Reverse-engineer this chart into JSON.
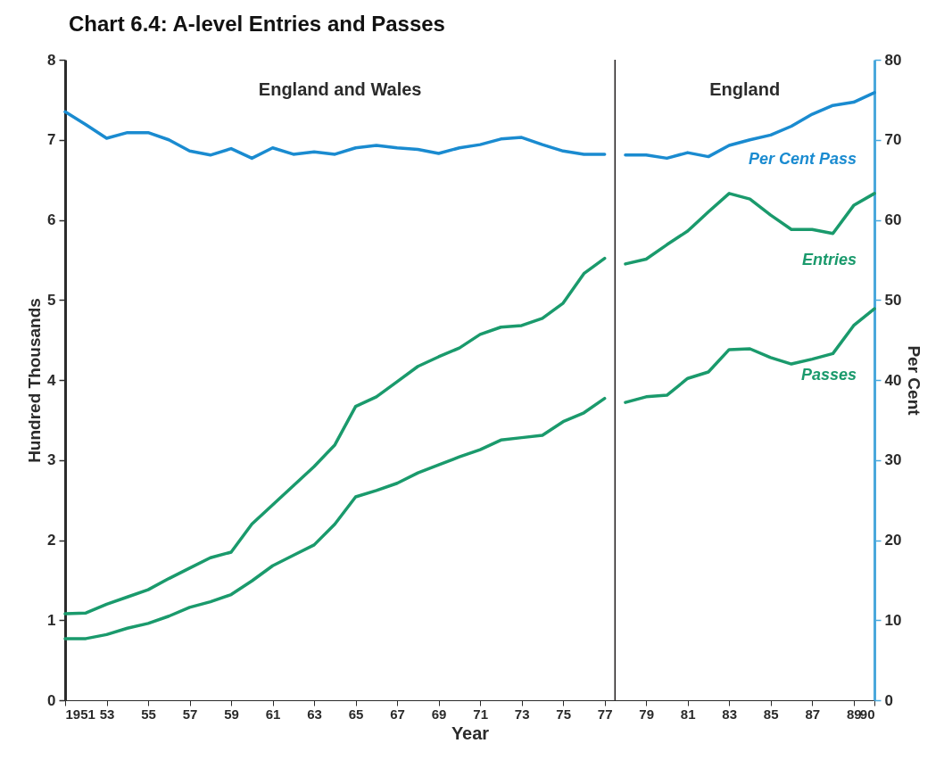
{
  "chart_data": {
    "type": "line",
    "title": "Chart 6.4: A-level Entries and Passes",
    "xlabel": "Year",
    "ylabel": "Hundred Thousands",
    "y2label": "Per Cent",
    "x": [
      1951,
      1952,
      1953,
      1954,
      1955,
      1956,
      1957,
      1958,
      1959,
      1960,
      1961,
      1962,
      1963,
      1964,
      1965,
      1966,
      1967,
      1968,
      1969,
      1970,
      1971,
      1972,
      1973,
      1974,
      1975,
      1976,
      1977,
      1978,
      1979,
      1980,
      1981,
      1982,
      1983,
      1984,
      1985,
      1986,
      1987,
      1988,
      1989,
      1990
    ],
    "series": [
      {
        "name": "Per Cent Pass",
        "color": "#1a8bd0",
        "axis": "y2",
        "values": [
          73.5,
          71.9,
          70.2,
          70.9,
          70.9,
          70.0,
          68.6,
          68.1,
          68.9,
          67.7,
          69.0,
          68.2,
          68.5,
          68.2,
          69.0,
          69.3,
          69.0,
          68.8,
          68.3,
          69.0,
          69.4,
          70.1,
          70.3,
          69.4,
          68.6,
          68.2,
          68.2,
          68.1,
          68.1,
          67.7,
          68.4,
          67.9,
          69.3,
          70.0,
          70.6,
          71.7,
          73.2,
          74.3,
          74.7,
          75.9
        ]
      },
      {
        "name": "Entries",
        "color": "#1a9a6c",
        "values": [
          1.08,
          1.09,
          1.2,
          1.29,
          1.38,
          1.52,
          1.65,
          1.78,
          1.85,
          2.2,
          2.44,
          2.68,
          2.92,
          3.19,
          3.67,
          3.79,
          3.98,
          4.17,
          4.29,
          4.4,
          4.57,
          4.66,
          4.68,
          4.77,
          4.96,
          5.33,
          5.52,
          5.45,
          5.51,
          5.69,
          5.86,
          6.1,
          6.33,
          6.26,
          6.06,
          5.88,
          5.88,
          5.83,
          6.18,
          6.33
        ]
      },
      {
        "name": "Passes",
        "color": "#1a9a6c",
        "values": [
          0.77,
          0.77,
          0.82,
          0.9,
          0.96,
          1.05,
          1.16,
          1.23,
          1.32,
          1.49,
          1.68,
          1.81,
          1.94,
          2.2,
          2.54,
          2.62,
          2.71,
          2.84,
          2.94,
          3.04,
          3.13,
          3.25,
          3.28,
          3.31,
          3.48,
          3.59,
          3.77,
          3.72,
          3.79,
          3.81,
          4.02,
          4.1,
          4.38,
          4.39,
          4.28,
          4.2,
          4.26,
          4.33,
          4.68,
          4.89
        ]
      }
    ],
    "xlim": [
      1951,
      1990
    ],
    "xticks": [
      1951,
      {
        "value": 1953,
        "label": "53"
      },
      {
        "value": 1955,
        "label": "55"
      },
      {
        "value": 1957,
        "label": "57"
      },
      {
        "value": 1959,
        "label": "59"
      },
      {
        "value": 1961,
        "label": "61"
      },
      {
        "value": 1963,
        "label": "63"
      },
      {
        "value": 1965,
        "label": "65"
      },
      {
        "value": 1967,
        "label": "67"
      },
      {
        "value": 1969,
        "label": "69"
      },
      {
        "value": 1971,
        "label": "71"
      },
      {
        "value": 1973,
        "label": "73"
      },
      {
        "value": 1975,
        "label": "75"
      },
      {
        "value": 1977,
        "label": "77"
      },
      {
        "value": 1979,
        "label": "79"
      },
      {
        "value": 1981,
        "label": "81"
      },
      {
        "value": 1983,
        "label": "83"
      },
      {
        "value": 1985,
        "label": "85"
      },
      {
        "value": 1987,
        "label": "87"
      },
      {
        "value": 1989,
        "label": "89"
      },
      {
        "value": 1990,
        "label": "90"
      }
    ],
    "ylim": [
      0,
      8
    ],
    "yticks": [
      0,
      1,
      2,
      3,
      4,
      5,
      6,
      7,
      8
    ],
    "y2lim": [
      0,
      80
    ],
    "y2ticks": [
      0,
      10,
      20,
      30,
      40,
      50,
      60,
      70,
      80
    ],
    "ref_lines": [
      {
        "axis": "x",
        "value": 1977.5,
        "color": "#231f20"
      }
    ],
    "annotations": [
      "England and Wales",
      "England"
    ],
    "marker": "none",
    "line_style": "solid",
    "grid": false
  }
}
